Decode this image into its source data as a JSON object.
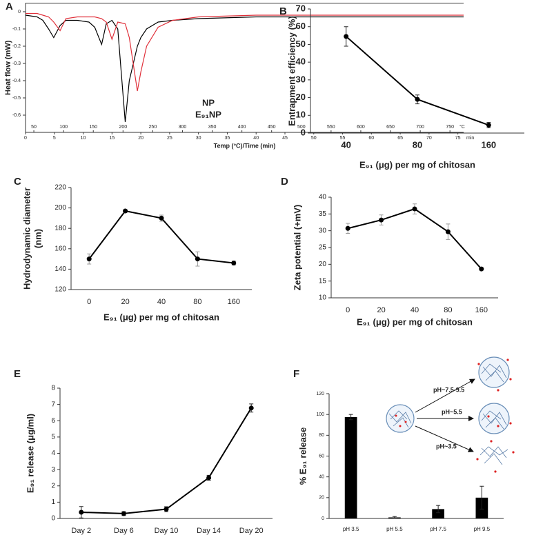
{
  "chart_data": [
    {
      "type": "line",
      "label": "A",
      "xlabel": "Temp (°C)/Time (min)",
      "ylabel": "Heat flow (mW)",
      "x_unit": "min",
      "x2_unit": "°C",
      "x": [
        0,
        2,
        3,
        4,
        4.9,
        6,
        7,
        9,
        11,
        12,
        13.2,
        14,
        15,
        16,
        17.3,
        18,
        19.4,
        20,
        21,
        23,
        25.5,
        30,
        40,
        50,
        60,
        70,
        76
      ],
      "series": [
        {
          "name": "NP",
          "color": "#000000",
          "values": [
            -0.02,
            -0.03,
            -0.05,
            -0.1,
            -0.15,
            -0.08,
            -0.05,
            -0.05,
            -0.06,
            -0.09,
            -0.19,
            -0.07,
            -0.05,
            -0.1,
            -0.64,
            -0.4,
            -0.2,
            -0.15,
            -0.1,
            -0.06,
            -0.05,
            -0.04,
            -0.03,
            -0.03,
            -0.03,
            -0.03,
            -0.03
          ]
        },
        {
          "name": "E₉₁NP",
          "color": "#e0303a",
          "values": [
            -0.01,
            -0.01,
            -0.02,
            -0.03,
            -0.06,
            -0.11,
            -0.04,
            -0.03,
            -0.03,
            -0.03,
            -0.04,
            -0.06,
            -0.16,
            -0.06,
            -0.07,
            -0.15,
            -0.46,
            -0.35,
            -0.2,
            -0.09,
            -0.05,
            -0.03,
            -0.02,
            -0.02,
            -0.02,
            -0.02,
            -0.02
          ]
        }
      ],
      "xlim": [
        0,
        76
      ],
      "xticks": [
        0,
        5,
        10,
        15,
        20,
        25,
        30,
        35,
        40,
        45,
        50,
        55,
        60,
        65,
        70,
        75
      ],
      "x2lim": [
        36,
        773
      ],
      "x2ticks": [
        50,
        100,
        150,
        200,
        250,
        300,
        350,
        400,
        450,
        500,
        550,
        600,
        650,
        700,
        750
      ],
      "ylim": [
        -0.7,
        0.05
      ],
      "yticks": [
        0,
        -0.1,
        -0.2,
        -0.3,
        -0.4,
        -0.5,
        -0.6
      ]
    },
    {
      "type": "line",
      "label": "B",
      "xlabel": "E₉₁ (μg) per mg of chitosan",
      "ylabel": "Entrapment efficiency (%)",
      "categories": [
        "40",
        "80",
        "160"
      ],
      "values": [
        54.5,
        19,
        4.5
      ],
      "errors": [
        5.5,
        2.5,
        1.5
      ],
      "color": "#000000",
      "ylim": [
        0,
        70
      ],
      "yticks": [
        0,
        10,
        20,
        30,
        40,
        50,
        60,
        70
      ]
    },
    {
      "type": "line",
      "label": "C",
      "xlabel": "E₉₁ (μg) per mg of chitosan",
      "ylabel": [
        "Hydrodynamic diameter",
        "(nm)"
      ],
      "categories": [
        "0",
        "20",
        "40",
        "80",
        "160"
      ],
      "values": [
        150,
        197,
        190,
        150,
        146
      ],
      "errors": [
        5,
        1.5,
        3,
        7,
        2
      ],
      "color": "#000000",
      "ylim": [
        120,
        220
      ],
      "yticks": [
        120,
        140,
        160,
        180,
        200,
        220
      ]
    },
    {
      "type": "line",
      "label": "D",
      "xlabel": "E₉₁ (μg) per mg of chitosan",
      "ylabel": "Zeta potential (+mV)",
      "categories": [
        "0",
        "20",
        "40",
        "80",
        "160"
      ],
      "values": [
        30.7,
        33.2,
        36.5,
        29.7,
        18.6
      ],
      "errors": [
        1.5,
        1.5,
        1.5,
        2.3,
        0.3
      ],
      "color": "#000000",
      "ylim": [
        10,
        40
      ],
      "yticks": [
        10,
        15,
        20,
        25,
        30,
        35,
        40
      ]
    },
    {
      "type": "line",
      "label": "E",
      "ylabel": "E₉₁ release (μg/ml)",
      "categories": [
        "Day 2",
        "Day 6",
        "Day 10",
        "Day 14",
        "Day 20"
      ],
      "values": [
        0.38,
        0.3,
        0.57,
        2.5,
        6.78
      ],
      "errors": [
        0.35,
        0.12,
        0.15,
        0.15,
        0.25
      ],
      "color": "#000000",
      "ylim": [
        0,
        8
      ],
      "yticks": [
        0,
        1,
        2,
        3,
        4,
        5,
        6,
        7,
        8
      ]
    },
    {
      "type": "bar",
      "label": "F",
      "ylabel": "% E₉₁ release",
      "categories": [
        "pH 3.5",
        "pH 5.5",
        "pH 7.5",
        "pH 9.5"
      ],
      "values": [
        97.5,
        1,
        9,
        20
      ],
      "errors": [
        2.5,
        0.8,
        3.5,
        11
      ],
      "color": "#000000",
      "ylim": [
        0,
        120
      ],
      "yticks": [
        0,
        20,
        40,
        60,
        80,
        100,
        120
      ],
      "annotations": [
        "pH~7.5-9.5",
        "pH~5.5",
        "pH~3.5"
      ]
    }
  ]
}
